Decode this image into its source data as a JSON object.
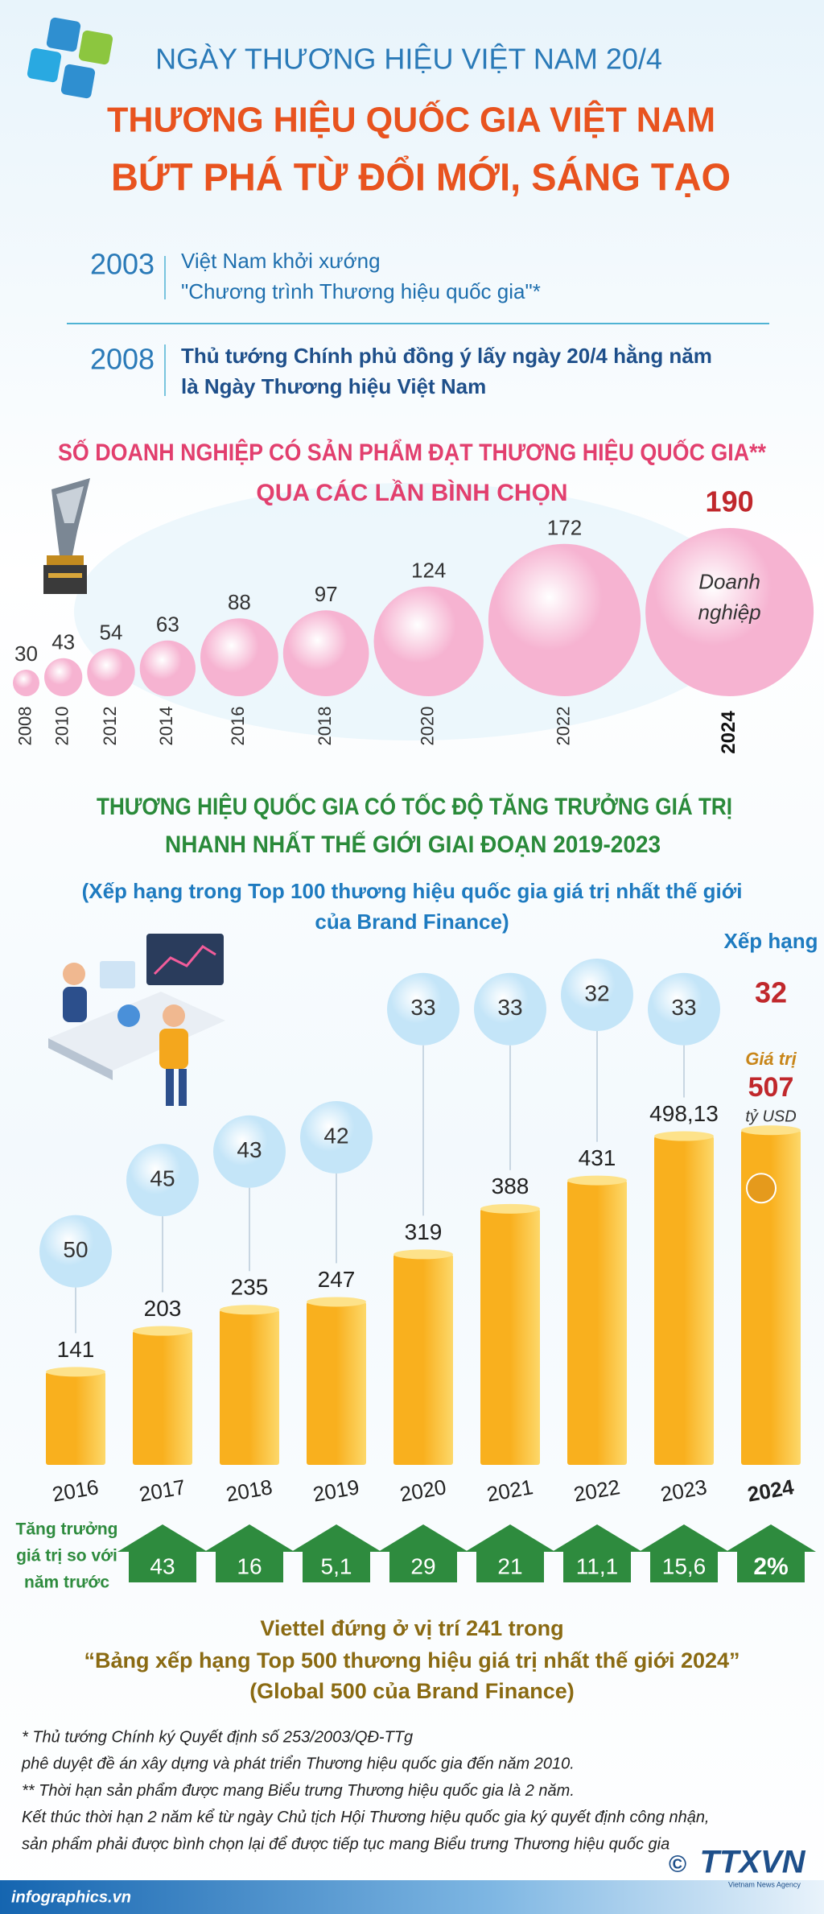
{
  "header": {
    "subtitle": "NGÀY THƯƠNG HIỆU VIỆT NAM 20/4",
    "title": [
      "THƯƠNG HIỆU QUỐC GIA VIỆT NAM",
      "BỨT PHÁ TỪ ĐỔI MỚI, SÁNG TẠO"
    ]
  },
  "timeline": [
    {
      "year": "2003",
      "text": [
        "Việt Nam khởi xướng",
        "\"Chương trình Thương hiệu quốc gia\"*"
      ]
    },
    {
      "year": "2008",
      "text": [
        "Thủ tướng Chính phủ đồng ý lấy ngày 20/4 hằng năm",
        "là Ngày Thương hiệu Việt Nam"
      ]
    }
  ],
  "chart_data": [
    {
      "type": "bubble",
      "title": [
        "SỐ DOANH NGHIỆP CÓ SẢN PHẨM ĐẠT THƯƠNG HIỆU QUỐC GIA**",
        "QUA CÁC LẦN BÌNH CHỌN"
      ],
      "categories": [
        "2008",
        "2010",
        "2012",
        "2014",
        "2016",
        "2018",
        "2020",
        "2022",
        "2024"
      ],
      "values": [
        30,
        43,
        54,
        63,
        88,
        97,
        124,
        172,
        190
      ],
      "annotation": [
        "Doanh",
        "nghiệp"
      ],
      "color": "#f6b3d1"
    },
    {
      "type": "bar",
      "title": [
        "THƯƠNG HIỆU QUỐC GIA CÓ TỐC ĐỘ TĂNG TRƯỞNG GIÁ TRỊ",
        "NHANH NHẤT THẾ GIỚI GIAI ĐOẠN 2019-2023"
      ],
      "subtitle": [
        "(Xếp hạng trong Top 100 thương hiệu quốc gia giá trị nhất thế giới",
        "của Brand Finance)"
      ],
      "categories": [
        "2016",
        "2017",
        "2018",
        "2019",
        "2020",
        "2021",
        "2022",
        "2023",
        "2024"
      ],
      "series": [
        {
          "name": "Giá trị",
          "unit": "tỷ USD",
          "values": [
            141,
            203,
            235,
            247,
            319,
            388,
            431,
            498.13,
            507
          ],
          "value_labels": [
            "141",
            "203",
            "235",
            "247",
            "319",
            "388",
            "431",
            "498,13",
            "507"
          ],
          "color": "#f9b01e"
        },
        {
          "name": "Xếp hạng",
          "values": [
            50,
            45,
            43,
            42,
            33,
            33,
            32,
            33,
            32
          ],
          "color": "#c4e5f8"
        },
        {
          "name": [
            "Tăng trưởng",
            "giá trị so với",
            "năm trước"
          ],
          "values": [
            null,
            43,
            16,
            5.1,
            29,
            21,
            11.1,
            15.6,
            2
          ],
          "value_labels": [
            null,
            "43",
            "16",
            "5,1",
            "29",
            "21",
            "11,1",
            "15,6",
            "2%"
          ],
          "color": "#2e8b3e"
        }
      ]
    }
  ],
  "notice": [
    "Viettel đứng ở vị trí 241 trong",
    "“Bảng xếp hạng Top 500 thương hiệu giá trị nhất thế giới 2024”",
    "(Global 500 của Brand Finance)"
  ],
  "footnotes": [
    "* Thủ tướng Chính ký Quyết định số 253/2003/QĐ-TTg",
    "phê duyệt đề án xây dựng và phát triển Thương hiệu quốc gia đến năm 2010.",
    "** Thời hạn sản phẩm được mang Biểu trưng Thương hiệu quốc gia là 2 năm.",
    "Kết thúc thời hạn 2 năm kể từ ngày Chủ tịch Hội Thương hiệu quốc gia ký quyết định công nhận,",
    "sản phẩm phải được bình chọn lại để được tiếp tục mang Biểu trưng Thương hiệu quốc gia"
  ],
  "footer": {
    "site": "infographics.vn",
    "copyright": "©",
    "agency": "TTXVN",
    "agency_en": "Vietnam News Agency"
  }
}
